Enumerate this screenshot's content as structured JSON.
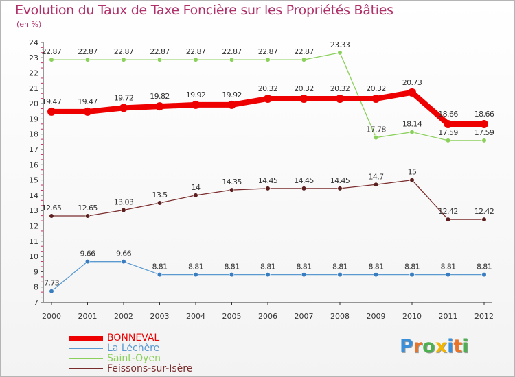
{
  "colors": {
    "title": "#b0306a",
    "axis": "#333333",
    "grid": "#dddddd",
    "dashes": "#e8205a"
  },
  "logo": {
    "letters": [
      "P",
      "r",
      "o",
      "x",
      "i",
      "t",
      "i"
    ],
    "colors": [
      "#3a8fd8",
      "#e8742a",
      "#4caf50",
      "#f2b705",
      "#3a8fd8",
      "#e8742a",
      "#4caf50"
    ]
  },
  "chart_data": {
    "type": "line",
    "title": "Evolution du Taux de Taxe Foncière sur les Propriétés Bâties",
    "subtitle": "(en %)",
    "xlabel": "",
    "ylabel": "",
    "categories": [
      "2000",
      "2001",
      "2002",
      "2003",
      "2004",
      "2005",
      "2006",
      "2007",
      "2008",
      "2009",
      "2010",
      "2011",
      "2012"
    ],
    "ylim": [
      7,
      24
    ],
    "yticks": [
      "7",
      "8",
      "9",
      "10",
      "11",
      "12",
      "13",
      "14",
      "15",
      "16",
      "17",
      "18",
      "19",
      "20",
      "21",
      "22",
      "23",
      "24"
    ],
    "grid": false,
    "legend_position": "bottom-left",
    "series": [
      {
        "name": "Saint-Oyen",
        "color": "#8cd05c",
        "marker_fill": "#8cd05c",
        "width": 1.3,
        "marker_r": 3.3,
        "label_side": "above",
        "values": [
          22.87,
          22.87,
          22.87,
          22.87,
          22.87,
          22.87,
          22.87,
          22.87,
          23.33,
          17.78,
          18.14,
          17.59,
          17.59
        ],
        "labels": [
          "22.87",
          "22.87",
          "22.87",
          "22.87",
          "22.87",
          "22.87",
          "22.87",
          "22.87",
          "23.33",
          "17.78",
          "18.14",
          "17.59",
          "17.59"
        ]
      },
      {
        "name": "BONNEVAL",
        "color": "#ee0000",
        "marker_fill": "#ee0000",
        "width": 8,
        "marker_r": 6,
        "label_side": "above",
        "values": [
          19.47,
          19.47,
          19.72,
          19.82,
          19.92,
          19.92,
          20.32,
          20.32,
          20.32,
          20.32,
          20.73,
          18.66,
          18.66
        ],
        "labels": [
          "19.47",
          "19.47",
          "19.72",
          "19.82",
          "19.92",
          "19.92",
          "20.32",
          "20.32",
          "20.32",
          "20.32",
          "20.73",
          "18.66",
          "18.66"
        ]
      },
      {
        "name": "Feissons-sur-Isère",
        "color": "#7a2c2c",
        "marker_fill": "#5c1f1f",
        "width": 1.3,
        "marker_r": 3.3,
        "label_side": "above",
        "values": [
          12.65,
          12.65,
          13.03,
          13.5,
          14,
          14.35,
          14.45,
          14.45,
          14.45,
          14.7,
          15,
          12.42,
          12.42
        ],
        "labels": [
          "12.65",
          "12.65",
          "13.03",
          "13.5",
          "14",
          "14.35",
          "14.45",
          "14.45",
          "14.45",
          "14.7",
          "15",
          "12.42",
          "12.42"
        ]
      },
      {
        "name": "La Léchère",
        "color": "#5b9ad0",
        "marker_fill": "#3a7cc0",
        "width": 1.3,
        "marker_r": 3.3,
        "label_side": "above",
        "values": [
          7.73,
          9.66,
          9.66,
          8.81,
          8.81,
          8.81,
          8.81,
          8.81,
          8.81,
          8.81,
          8.81,
          8.81,
          8.81
        ],
        "labels": [
          "7.73",
          "9.66",
          "9.66",
          "8.81",
          "8.81",
          "8.81",
          "8.81",
          "8.81",
          "8.81",
          "8.81",
          "8.81",
          "8.81",
          "8.81"
        ]
      }
    ],
    "legend": [
      {
        "name": "BONNEVAL",
        "color": "#ee0000",
        "thickness": 7
      },
      {
        "name": "La Léchère",
        "color": "#5b9ad0",
        "thickness": 2
      },
      {
        "name": "Saint-Oyen",
        "color": "#8cd05c",
        "thickness": 2
      },
      {
        "name": "Feissons-sur-Isère",
        "color": "#7a2c2c",
        "thickness": 2
      }
    ]
  }
}
